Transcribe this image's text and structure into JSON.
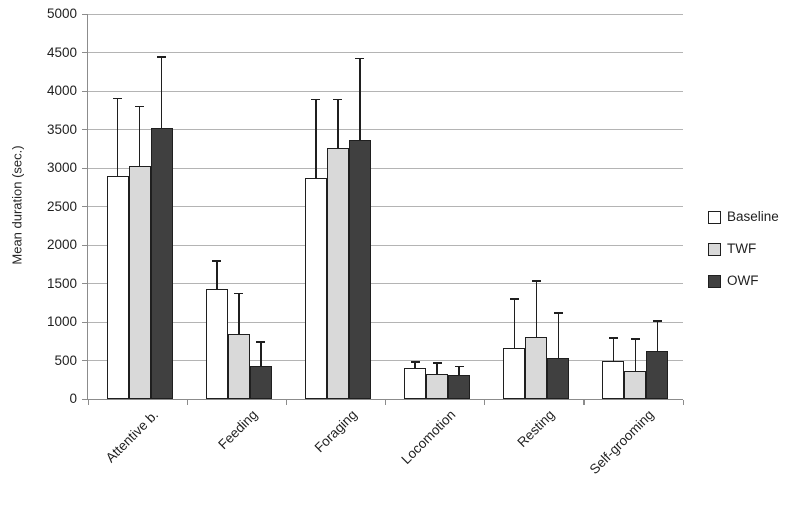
{
  "chart_data": {
    "type": "bar",
    "title": "",
    "xlabel": "",
    "ylabel": "Mean duration (sec.)",
    "ylim": [
      0,
      5000
    ],
    "ytick_step": 500,
    "grid": "horizontal",
    "error_bars": "upper-only, black caps",
    "legend_position": "right",
    "categories": [
      "Attentive b.",
      "Feeding",
      "Foraging",
      "Locomotion",
      "Resting",
      "Self-grooming"
    ],
    "series": [
      {
        "name": "Baseline",
        "color": "#ffffff",
        "values": [
          2900,
          1430,
          2870,
          400,
          660,
          490
        ],
        "upper_errors": [
          1000,
          360,
          1020,
          80,
          640,
          300
        ]
      },
      {
        "name": "TWF",
        "color": "#d9d9d9",
        "values": [
          3030,
          850,
          3260,
          330,
          810,
          370
        ],
        "upper_errors": [
          770,
          520,
          630,
          140,
          720,
          410
        ]
      },
      {
        "name": "OWF",
        "color": "#404040",
        "values": [
          3520,
          430,
          3370,
          310,
          530,
          620
        ],
        "upper_errors": [
          920,
          310,
          1050,
          110,
          590,
          390
        ]
      }
    ]
  }
}
